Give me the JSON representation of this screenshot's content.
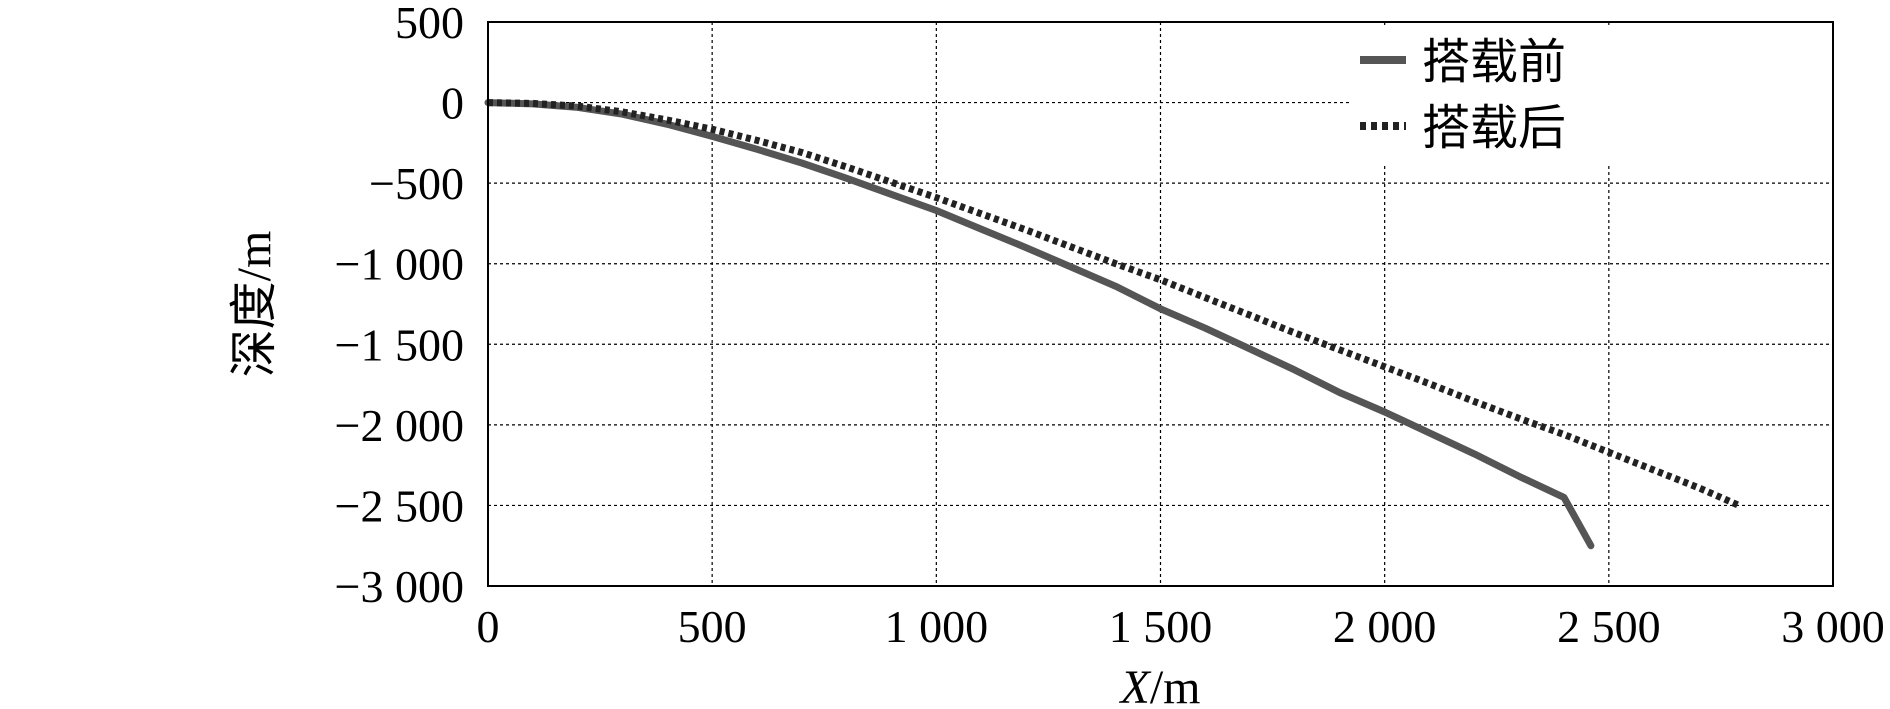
{
  "chart_data": {
    "type": "line",
    "title": "",
    "xlabel_italic": "X",
    "xlabel_rest": "/m",
    "ylabel": "深度/m",
    "xlim": [
      0,
      3000
    ],
    "ylim": [
      -3000,
      500
    ],
    "x_ticks": [
      0,
      500,
      1000,
      1500,
      2000,
      2500,
      3000
    ],
    "x_tick_labels": [
      "0",
      "500",
      "1 000",
      "1 500",
      "2 000",
      "2 500",
      "3 000"
    ],
    "y_ticks": [
      500,
      0,
      -500,
      -1000,
      -1500,
      -2000,
      -2500,
      -3000
    ],
    "y_tick_labels": [
      "500",
      "0",
      "−500",
      "−1 000",
      "−1 500",
      "−2 000",
      "−2 500",
      "−3 000"
    ],
    "grid": true,
    "legend_position": "top-right",
    "series": [
      {
        "name": "搭载前",
        "style": "solid",
        "color": "#555555",
        "x": [
          0,
          100,
          200,
          300,
          400,
          500,
          600,
          700,
          800,
          900,
          1000,
          1100,
          1200,
          1300,
          1400,
          1500,
          1600,
          1700,
          1800,
          1900,
          2000,
          2100,
          2200,
          2300,
          2400,
          2460
        ],
        "y": [
          0,
          -8,
          -30,
          -72,
          -135,
          -210,
          -290,
          -375,
          -470,
          -570,
          -670,
          -785,
          -900,
          -1020,
          -1140,
          -1280,
          -1400,
          -1530,
          -1660,
          -1800,
          -1920,
          -2050,
          -2180,
          -2320,
          -2450,
          -2750
        ]
      },
      {
        "name": "搭载后",
        "style": "dotted",
        "color": "#222222",
        "x": [
          0,
          100,
          200,
          300,
          400,
          500,
          600,
          700,
          800,
          900,
          1000,
          1100,
          1200,
          1300,
          1400,
          1500,
          1600,
          1700,
          1800,
          1900,
          2000,
          2100,
          2200,
          2300,
          2400,
          2500,
          2600,
          2700,
          2790
        ],
        "y": [
          0,
          -5,
          -22,
          -58,
          -108,
          -165,
          -235,
          -310,
          -400,
          -495,
          -590,
          -690,
          -790,
          -895,
          -1000,
          -1100,
          -1210,
          -1320,
          -1430,
          -1535,
          -1640,
          -1745,
          -1855,
          -1960,
          -2060,
          -2170,
          -2280,
          -2390,
          -2500
        ]
      }
    ]
  }
}
